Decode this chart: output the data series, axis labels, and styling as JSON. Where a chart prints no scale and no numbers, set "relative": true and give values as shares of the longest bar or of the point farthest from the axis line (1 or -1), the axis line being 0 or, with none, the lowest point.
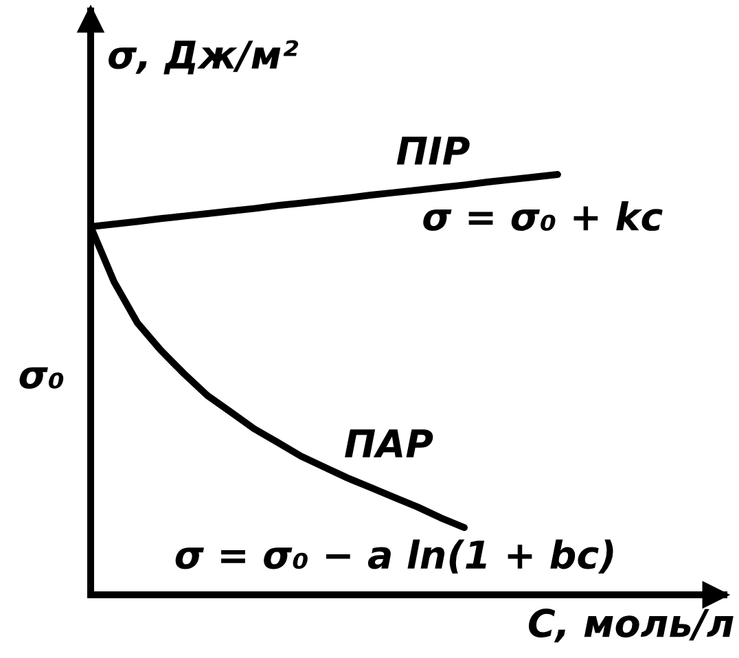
{
  "chart_data": {
    "type": "line",
    "relative": true,
    "xlabel": "C, моль/л",
    "ylabel": "σ, Дж/м²",
    "categories": [
      null,
      null,
      null,
      null,
      null,
      null,
      null,
      null,
      null,
      null,
      null,
      null,
      null,
      null,
      null,
      null,
      null,
      null,
      null,
      null,
      null
    ],
    "series": [
      {
        "name": "ПІР",
        "color": "#000000",
        "values": [
          0.876,
          0.882,
          0.888,
          0.895,
          0.901,
          0.907,
          0.913,
          0.919,
          0.926,
          0.932,
          0.938,
          0.944,
          0.951,
          0.957,
          0.963,
          0.969,
          0.975,
          0.982,
          0.988,
          0.994,
          1.0
        ]
      },
      {
        "name": "ПАР",
        "color": "#000000",
        "values": [
          0.876,
          0.745,
          0.647,
          0.582,
          0.526,
          0.474,
          0.435,
          0.395,
          0.363,
          0.33,
          0.304,
          0.278,
          0.255,
          0.232,
          0.209,
          0.183,
          0.16,
          null,
          null,
          null,
          null
        ]
      }
    ],
    "annotations": [
      "σ = σ₀ + kc",
      "σ = σ₀ − a ln(1 + bc)",
      "σ₀"
    ]
  }
}
